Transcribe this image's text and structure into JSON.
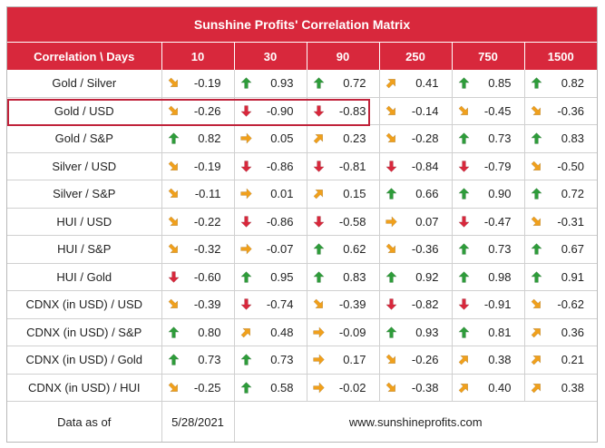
{
  "title": "Sunshine Profits' Correlation Matrix",
  "header": {
    "corner": "Correlation \\ Days",
    "days": [
      "10",
      "30",
      "90",
      "250",
      "750",
      "1500"
    ]
  },
  "colors": {
    "header_bg": "#d8283c",
    "up": "#2e9c3a",
    "down": "#d8283c",
    "flat": "#f0a01c"
  },
  "rows": [
    {
      "label": "Gold / Silver",
      "cells": [
        [
          "down-right",
          "-0.19"
        ],
        [
          "up",
          "0.93"
        ],
        [
          "up",
          "0.72"
        ],
        [
          "up-right",
          "0.41"
        ],
        [
          "up",
          "0.85"
        ],
        [
          "up",
          "0.82"
        ]
      ]
    },
    {
      "label": "Gold / USD",
      "cells": [
        [
          "down-right",
          "-0.26"
        ],
        [
          "down",
          "-0.90"
        ],
        [
          "down",
          "-0.83"
        ],
        [
          "down-right",
          "-0.14"
        ],
        [
          "down-right",
          "-0.45"
        ],
        [
          "down-right",
          "-0.36"
        ]
      ]
    },
    {
      "label": "Gold / S&P",
      "cells": [
        [
          "up",
          "0.82"
        ],
        [
          "right",
          "0.05"
        ],
        [
          "up-right",
          "0.23"
        ],
        [
          "down-right",
          "-0.28"
        ],
        [
          "up",
          "0.73"
        ],
        [
          "up",
          "0.83"
        ]
      ]
    },
    {
      "label": "Silver / USD",
      "cells": [
        [
          "down-right",
          "-0.19"
        ],
        [
          "down",
          "-0.86"
        ],
        [
          "down",
          "-0.81"
        ],
        [
          "down",
          "-0.84"
        ],
        [
          "down",
          "-0.79"
        ],
        [
          "down-right",
          "-0.50"
        ]
      ]
    },
    {
      "label": "Silver / S&P",
      "cells": [
        [
          "down-right",
          "-0.11"
        ],
        [
          "right",
          "0.01"
        ],
        [
          "up-right",
          "0.15"
        ],
        [
          "up",
          "0.66"
        ],
        [
          "up",
          "0.90"
        ],
        [
          "up",
          "0.72"
        ]
      ]
    },
    {
      "label": "HUI / USD",
      "cells": [
        [
          "down-right",
          "-0.22"
        ],
        [
          "down",
          "-0.86"
        ],
        [
          "down",
          "-0.58"
        ],
        [
          "right",
          "0.07"
        ],
        [
          "down",
          "-0.47"
        ],
        [
          "down-right",
          "-0.31"
        ]
      ]
    },
    {
      "label": "HUI / S&P",
      "cells": [
        [
          "down-right",
          "-0.32"
        ],
        [
          "right",
          "-0.07"
        ],
        [
          "up",
          "0.62"
        ],
        [
          "down-right",
          "-0.36"
        ],
        [
          "up",
          "0.73"
        ],
        [
          "up",
          "0.67"
        ]
      ]
    },
    {
      "label": "HUI / Gold",
      "cells": [
        [
          "down",
          "-0.60"
        ],
        [
          "up",
          "0.95"
        ],
        [
          "up",
          "0.83"
        ],
        [
          "up",
          "0.92"
        ],
        [
          "up",
          "0.98"
        ],
        [
          "up",
          "0.91"
        ]
      ]
    },
    {
      "label": "CDNX (in USD) / USD",
      "cells": [
        [
          "down-right",
          "-0.39"
        ],
        [
          "down",
          "-0.74"
        ],
        [
          "down-right",
          "-0.39"
        ],
        [
          "down",
          "-0.82"
        ],
        [
          "down",
          "-0.91"
        ],
        [
          "down-right",
          "-0.62"
        ]
      ]
    },
    {
      "label": "CDNX (in USD) / S&P",
      "cells": [
        [
          "up",
          "0.80"
        ],
        [
          "up-right",
          "0.48"
        ],
        [
          "right",
          "-0.09"
        ],
        [
          "up",
          "0.93"
        ],
        [
          "up",
          "0.81"
        ],
        [
          "up-right",
          "0.36"
        ]
      ]
    },
    {
      "label": "CDNX (in USD) / Gold",
      "cells": [
        [
          "up",
          "0.73"
        ],
        [
          "up",
          "0.73"
        ],
        [
          "right",
          "0.17"
        ],
        [
          "down-right",
          "-0.26"
        ],
        [
          "up-right",
          "0.38"
        ],
        [
          "up-right",
          "0.21"
        ]
      ]
    },
    {
      "label": "CDNX (in USD) / HUI",
      "cells": [
        [
          "down-right",
          "-0.25"
        ],
        [
          "up",
          "0.58"
        ],
        [
          "right",
          "-0.02"
        ],
        [
          "down-right",
          "-0.38"
        ],
        [
          "up-right",
          "0.40"
        ],
        [
          "up-right",
          "0.38"
        ]
      ]
    }
  ],
  "footer": {
    "label": "Data as of",
    "date": "5/28/2021",
    "site": "www.sunshineprofits.com"
  }
}
